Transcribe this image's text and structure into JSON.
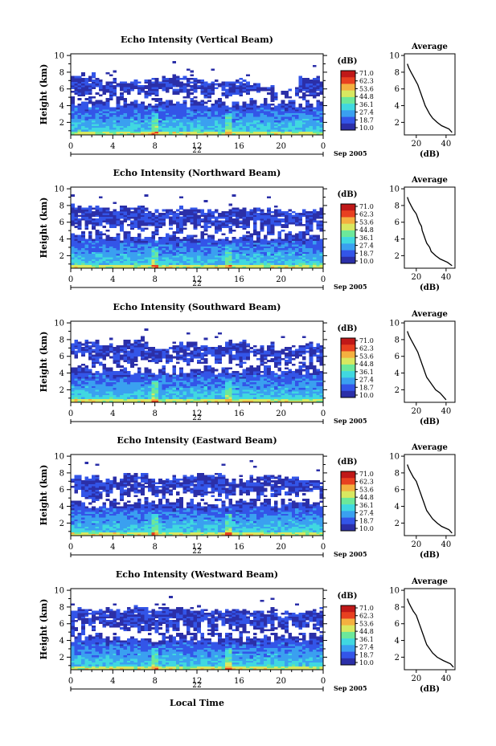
{
  "colorbar": {
    "unit": "(dB)",
    "ticks": [
      "71.0",
      "62.3",
      "53.6",
      "44.8",
      "36.1",
      "27.4",
      "18.7",
      "10.0"
    ],
    "colors": [
      "#2b2fa8",
      "#3355e8",
      "#3aa0f0",
      "#40d8e0",
      "#6ce89a",
      "#d8e860",
      "#f4b040",
      "#e84020",
      "#c01818"
    ]
  },
  "common": {
    "ylabel": "Height (km)",
    "xticks": [
      "0",
      "4",
      "8",
      "12",
      "16",
      "20",
      "0"
    ],
    "date_day": "22",
    "date_monthyear": "Sep 2005",
    "xlabel": "Local Time",
    "avg_title": "Average",
    "avg_xlabel": "(dB)"
  },
  "chart_data": [
    {
      "type": "heatmap",
      "title": "Echo Intensity (Vertical Beam)",
      "x_range_hours": [
        0,
        24
      ],
      "y_range_km": [
        0.5,
        10.2
      ],
      "yticks": [
        2,
        4,
        6,
        8,
        10
      ],
      "clim_db": [
        10.0,
        71.0
      ],
      "profile_top_km": [
        7.6,
        7.0,
        6.8,
        7.2,
        7.5,
        6.9,
        7.1,
        6.4,
        5.9,
        7.2
      ],
      "average": {
        "type": "line",
        "xticks": [
          20,
          40
        ],
        "xlim": [
          12,
          46
        ],
        "height_km": [
          0.8,
          1.2,
          1.6,
          2.0,
          2.5,
          3.0,
          3.5,
          4.0,
          4.5,
          5.0,
          5.5,
          6.0,
          6.5,
          7.0,
          7.5,
          8.0,
          8.5,
          9.0
        ],
        "db": [
          44,
          42,
          37,
          34,
          31,
          29,
          27.5,
          26,
          25,
          24,
          23,
          22,
          21,
          19.5,
          18,
          16.5,
          15,
          14
        ]
      }
    },
    {
      "type": "heatmap",
      "title": "Echo Intensity (Northward Beam)",
      "x_range_hours": [
        0,
        24
      ],
      "y_range_km": [
        0.5,
        10.2
      ],
      "yticks": [
        2,
        4,
        6,
        8,
        10
      ],
      "clim_db": [
        10.0,
        71.0
      ],
      "profile_top_km": [
        7.9,
        7.6,
        7.8,
        7.5,
        7.7,
        7.4,
        7.6,
        7.5,
        7.3,
        7.4
      ],
      "average": {
        "type": "line",
        "xticks": [
          20,
          40
        ],
        "xlim": [
          12,
          46
        ],
        "height_km": [
          0.8,
          1.2,
          1.6,
          2.0,
          2.5,
          3.0,
          3.5,
          4.0,
          4.5,
          5.0,
          5.5,
          6.0,
          6.5,
          7.0,
          7.5,
          8.0,
          8.5,
          9.0
        ],
        "db": [
          44,
          41,
          36,
          33,
          30,
          29,
          27,
          26,
          25,
          24,
          23.5,
          22,
          21,
          20,
          18,
          16.5,
          15,
          14
        ]
      }
    },
    {
      "type": "heatmap",
      "title": "Echo Intensity (Southward Beam)",
      "x_range_hours": [
        0,
        24
      ],
      "y_range_km": [
        0.5,
        10.2
      ],
      "yticks": [
        2,
        4,
        6,
        8,
        10
      ],
      "clim_db": [
        10.0,
        71.0
      ],
      "profile_top_km": [
        7.8,
        7.4,
        7.9,
        7.1,
        7.6,
        7.3,
        7.8,
        7.2,
        7.0,
        7.5
      ],
      "average": {
        "type": "line",
        "xticks": [
          20,
          40
        ],
        "xlim": [
          12,
          46
        ],
        "height_km": [
          0.8,
          1.2,
          1.6,
          2.0,
          2.5,
          3.0,
          3.5,
          4.0,
          4.5,
          5.0,
          5.5,
          6.0,
          6.5,
          7.0,
          7.5,
          8.0,
          8.5,
          9.0
        ],
        "db": [
          40,
          38,
          36,
          33,
          31,
          29,
          27,
          26,
          25,
          24,
          23,
          22,
          21,
          19.5,
          18,
          16.5,
          15,
          14
        ]
      }
    },
    {
      "type": "heatmap",
      "title": "Echo Intensity (Eastward Beam)",
      "x_range_hours": [
        0,
        24
      ],
      "y_range_km": [
        0.5,
        10.2
      ],
      "yticks": [
        2,
        4,
        6,
        8,
        10
      ],
      "clim_db": [
        10.0,
        71.0
      ],
      "profile_top_km": [
        7.6,
        7.2,
        7.9,
        7.3,
        7.5,
        7.8,
        7.1,
        7.6,
        7.4,
        7.0
      ],
      "average": {
        "type": "line",
        "xticks": [
          20,
          40
        ],
        "xlim": [
          12,
          46
        ],
        "height_km": [
          0.8,
          1.2,
          1.6,
          2.0,
          2.5,
          3.0,
          3.5,
          4.0,
          4.5,
          5.0,
          5.5,
          6.0,
          6.5,
          7.0,
          7.5,
          8.0,
          8.5,
          9.0
        ],
        "db": [
          44,
          42,
          37,
          34,
          31,
          29,
          27,
          26,
          25,
          24,
          23,
          22,
          21,
          20,
          18,
          16.5,
          15,
          14
        ]
      }
    },
    {
      "type": "heatmap",
      "title": "Echo Intensity (Westward Beam)",
      "x_range_hours": [
        0,
        24
      ],
      "y_range_km": [
        0.5,
        10.2
      ],
      "yticks": [
        2,
        4,
        6,
        8,
        10
      ],
      "clim_db": [
        10.0,
        71.0
      ],
      "profile_top_km": [
        7.8,
        7.6,
        8.0,
        7.7,
        7.9,
        7.6,
        7.8,
        7.5,
        7.4,
        7.6
      ],
      "average": {
        "type": "line",
        "xticks": [
          20,
          40
        ],
        "xlim": [
          12,
          46
        ],
        "height_km": [
          0.8,
          1.2,
          1.6,
          2.0,
          2.5,
          3.0,
          3.5,
          4.0,
          4.5,
          5.0,
          5.5,
          6.0,
          6.5,
          7.0,
          7.5,
          8.0,
          8.5,
          9.0
        ],
        "db": [
          45,
          43,
          38,
          34,
          31,
          29,
          27,
          26,
          25,
          24,
          23,
          22,
          21,
          20,
          18,
          16.5,
          15,
          14
        ]
      }
    }
  ]
}
